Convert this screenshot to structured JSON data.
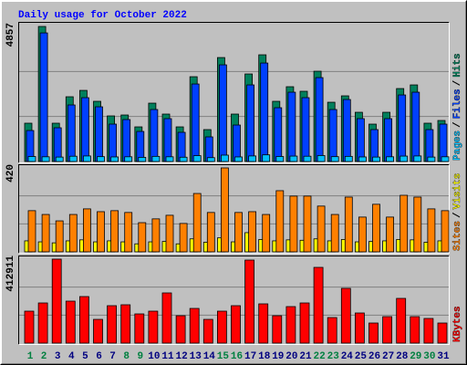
{
  "chart_data": [
    {
      "type": "bar",
      "title": "Daily usage for October 2022",
      "categories": [
        "1",
        "2",
        "3",
        "4",
        "5",
        "6",
        "7",
        "8",
        "9",
        "10",
        "11",
        "12",
        "13",
        "14",
        "15",
        "16",
        "17",
        "18",
        "19",
        "20",
        "21",
        "22",
        "23",
        "24",
        "25",
        "26",
        "27",
        "28",
        "29",
        "30",
        "31"
      ],
      "category_colors": [
        "#008040",
        "#008040",
        "#000080",
        "#000080",
        "#000080",
        "#000080",
        "#000080",
        "#008040",
        "#008040",
        "#000080",
        "#000080",
        "#000080",
        "#000080",
        "#000080",
        "#008040",
        "#008040",
        "#000080",
        "#000080",
        "#000080",
        "#000080",
        "#000080",
        "#008040",
        "#008040",
        "#000080",
        "#000080",
        "#000080",
        "#000080",
        "#000080",
        "#008040",
        "#008040",
        "#000080"
      ],
      "legend_separator": "/",
      "ylim": [
        0,
        4857
      ],
      "series": [
        {
          "name": "Pages",
          "color": "#00c0ff",
          "values": [
            180,
            170,
            160,
            190,
            200,
            175,
            165,
            170,
            150,
            185,
            170,
            155,
            210,
            140,
            230,
            165,
            200,
            240,
            180,
            195,
            190,
            215,
            175,
            185,
            165,
            160,
            170,
            195,
            200,
            160,
            170
          ]
        },
        {
          "name": "Files",
          "color": "#0040ff",
          "values": [
            1115,
            4625,
            1214,
            2034,
            2296,
            1968,
            1345,
            1509,
            1082,
            1870,
            1542,
            1050,
            2788,
            886,
            3477,
            1312,
            2755,
            3542,
            1935,
            2493,
            2296,
            3018,
            1870,
            2230,
            1542,
            1148,
            1542,
            2394,
            2493,
            1148,
            1345
          ]
        },
        {
          "name": "Hits",
          "color": "#00805c",
          "values": [
            1378,
            4857,
            1378,
            2329,
            2558,
            2165,
            1640,
            1673,
            1246,
            2099,
            1706,
            1246,
            3050,
            1148,
            3739,
            1706,
            3149,
            3838,
            2165,
            2690,
            2526,
            3247,
            2132,
            2362,
            1771,
            1345,
            1771,
            2624,
            2755,
            1378,
            1476
          ]
        }
      ]
    },
    {
      "type": "bar",
      "legend_separator": "/",
      "ylim": [
        0,
        420
      ],
      "series": [
        {
          "name": "Sites",
          "color": "#ff8000",
          "values": [
            206,
            187,
            155,
            187,
            215,
            201,
            206,
            197,
            146,
            165,
            183,
            142,
            292,
            197,
            420,
            197,
            201,
            187,
            306,
            279,
            279,
            229,
            187,
            274,
            174,
            238,
            174,
            283,
            274,
            215,
            206
          ]
        },
        {
          "name": "Visits",
          "color": "#ffff00",
          "values": [
            55,
            50,
            45,
            55,
            60,
            50,
            55,
            50,
            40,
            50,
            52,
            40,
            65,
            48,
            70,
            50,
            96,
            62,
            55,
            60,
            58,
            65,
            55,
            62,
            50,
            52,
            55,
            62,
            60,
            48,
            55
          ]
        }
      ]
    },
    {
      "type": "bar",
      "ylim": [
        0,
        412911
      ],
      "series": [
        {
          "name": "KBytes",
          "color": "#ff0000",
          "values": [
            157080,
            197472,
            412911,
            206448,
            228888,
            116688,
            184008,
            188496,
            143616,
            157080,
            246840,
            134640,
            170544,
            116688,
            157080,
            184008,
            408408,
            192984,
            134640,
            179520,
            197472,
            372504,
            125664,
            269280,
            148104,
            98736,
            130152,
            219912,
            130152,
            121176,
            98736
          ]
        }
      ]
    }
  ]
}
